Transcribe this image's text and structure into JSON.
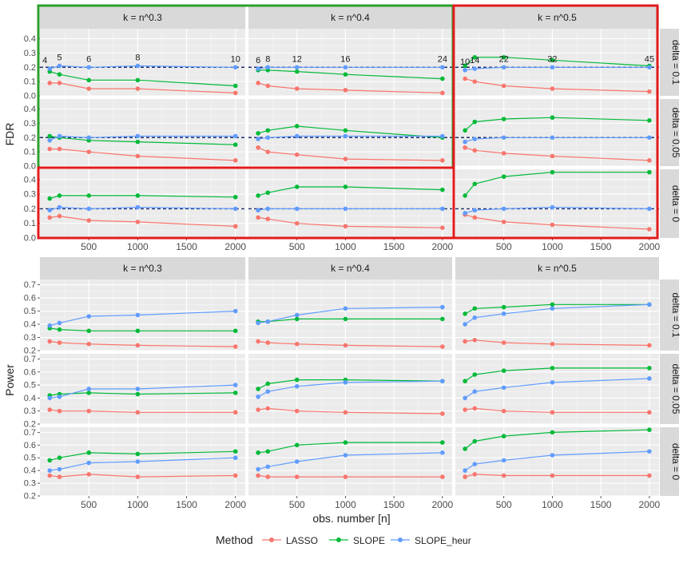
{
  "colors": {
    "LASSO": "#F8766D",
    "SLOPE": "#00BA38",
    "SLOPE_heur": "#619CFF",
    "panel_bg": "#EBEBEB",
    "strip_bg": "#D9D9D9",
    "highlight_green": "#2CA02C",
    "highlight_red": "#E31A1C",
    "reference_line": "#1F2F6B"
  },
  "legend": {
    "title": "Method",
    "entries": [
      "LASSO",
      "SLOPE",
      "SLOPE_heur"
    ]
  },
  "x_axis_label": "obs. number [n]",
  "col_strips": [
    "k = n^0.3",
    "k = n^0.4",
    "k = n^0.5"
  ],
  "row_strips": [
    "delta = 0.1",
    "delta = 0.05",
    "delta = 0"
  ],
  "chart_data": [
    {
      "type": "line",
      "ylabel": "FDR",
      "x": [
        100,
        200,
        500,
        1000,
        2000
      ],
      "x_ticks": [
        "500",
        "1000",
        "1500",
        "2000"
      ],
      "xlim": [
        0,
        2100
      ],
      "ylim": [
        0,
        0.47
      ],
      "y_ticks": [
        "0.0",
        "0.1",
        "0.2",
        "0.3",
        "0.4"
      ],
      "reference_line_y": 0.2,
      "panels": [
        {
          "col": 0,
          "row": 0,
          "LASSO": [
            0.09,
            0.09,
            0.05,
            0.05,
            0.02
          ],
          "SLOPE": [
            0.17,
            0.15,
            0.11,
            0.11,
            0.07
          ],
          "SLOPE_heur": [
            0.19,
            0.21,
            0.2,
            0.21,
            0.2
          ],
          "point_labels": [
            "4",
            "5",
            "6",
            "8",
            "10"
          ]
        },
        {
          "col": 1,
          "row": 0,
          "LASSO": [
            0.09,
            0.07,
            0.05,
            0.04,
            0.02
          ],
          "SLOPE": [
            0.18,
            0.18,
            0.17,
            0.15,
            0.12
          ],
          "SLOPE_heur": [
            0.19,
            0.2,
            0.2,
            0.2,
            0.2
          ],
          "point_labels": [
            "6",
            "8",
            "12",
            "16",
            "24"
          ]
        },
        {
          "col": 2,
          "row": 0,
          "LASSO": [
            0.12,
            0.1,
            0.07,
            0.05,
            0.03
          ],
          "SLOPE": [
            0.21,
            0.27,
            0.27,
            0.25,
            0.21
          ],
          "SLOPE_heur": [
            0.18,
            0.19,
            0.2,
            0.2,
            0.2
          ],
          "point_labels": [
            "10",
            "14",
            "22",
            "32",
            "45"
          ]
        },
        {
          "col": 0,
          "row": 1,
          "LASSO": [
            0.12,
            0.12,
            0.1,
            0.07,
            0.04
          ],
          "SLOPE": [
            0.21,
            0.2,
            0.18,
            0.17,
            0.15
          ],
          "SLOPE_heur": [
            0.18,
            0.21,
            0.2,
            0.21,
            0.21
          ]
        },
        {
          "col": 1,
          "row": 1,
          "LASSO": [
            0.13,
            0.1,
            0.08,
            0.05,
            0.04
          ],
          "SLOPE": [
            0.23,
            0.25,
            0.28,
            0.25,
            0.2
          ],
          "SLOPE_heur": [
            0.19,
            0.2,
            0.21,
            0.21,
            0.21
          ]
        },
        {
          "col": 2,
          "row": 1,
          "LASSO": [
            0.13,
            0.11,
            0.09,
            0.07,
            0.04
          ],
          "SLOPE": [
            0.25,
            0.31,
            0.33,
            0.34,
            0.32
          ],
          "SLOPE_heur": [
            0.17,
            0.19,
            0.2,
            0.2,
            0.2
          ]
        },
        {
          "col": 0,
          "row": 2,
          "LASSO": [
            0.14,
            0.15,
            0.12,
            0.11,
            0.08
          ],
          "SLOPE": [
            0.27,
            0.29,
            0.29,
            0.29,
            0.28
          ],
          "SLOPE_heur": [
            0.19,
            0.21,
            0.2,
            0.21,
            0.2
          ]
        },
        {
          "col": 1,
          "row": 2,
          "LASSO": [
            0.14,
            0.13,
            0.1,
            0.08,
            0.07
          ],
          "SLOPE": [
            0.29,
            0.31,
            0.35,
            0.35,
            0.33
          ],
          "SLOPE_heur": [
            0.19,
            0.2,
            0.2,
            0.2,
            0.2
          ]
        },
        {
          "col": 2,
          "row": 2,
          "LASSO": [
            0.16,
            0.14,
            0.11,
            0.09,
            0.06
          ],
          "SLOPE": [
            0.29,
            0.37,
            0.42,
            0.45,
            0.45
          ],
          "SLOPE_heur": [
            0.17,
            0.19,
            0.2,
            0.21,
            0.2
          ]
        }
      ]
    },
    {
      "type": "line",
      "ylabel": "Power",
      "x": [
        100,
        200,
        500,
        1000,
        2000
      ],
      "x_ticks": [
        "500",
        "1000",
        "1500",
        "2000"
      ],
      "xlim": [
        0,
        2100
      ],
      "ylim": [
        0.2,
        0.74
      ],
      "y_ticks": [
        "0.2",
        "0.3",
        "0.4",
        "0.5",
        "0.6",
        "0.7"
      ],
      "panels": [
        {
          "col": 0,
          "row": 0,
          "LASSO": [
            0.27,
            0.26,
            0.25,
            0.24,
            0.23
          ],
          "SLOPE": [
            0.37,
            0.36,
            0.35,
            0.35,
            0.35
          ],
          "SLOPE_heur": [
            0.39,
            0.41,
            0.46,
            0.47,
            0.5
          ]
        },
        {
          "col": 1,
          "row": 0,
          "LASSO": [
            0.27,
            0.26,
            0.25,
            0.24,
            0.23
          ],
          "SLOPE": [
            0.42,
            0.42,
            0.44,
            0.44,
            0.44
          ],
          "SLOPE_heur": [
            0.41,
            0.42,
            0.47,
            0.52,
            0.53
          ]
        },
        {
          "col": 2,
          "row": 0,
          "LASSO": [
            0.27,
            0.28,
            0.26,
            0.25,
            0.24
          ],
          "SLOPE": [
            0.48,
            0.52,
            0.53,
            0.55,
            0.55
          ],
          "SLOPE_heur": [
            0.4,
            0.45,
            0.48,
            0.52,
            0.55
          ]
        },
        {
          "col": 0,
          "row": 1,
          "LASSO": [
            0.31,
            0.3,
            0.3,
            0.29,
            0.29
          ],
          "SLOPE": [
            0.42,
            0.43,
            0.44,
            0.43,
            0.44
          ],
          "SLOPE_heur": [
            0.4,
            0.41,
            0.47,
            0.47,
            0.5
          ]
        },
        {
          "col": 1,
          "row": 1,
          "LASSO": [
            0.31,
            0.32,
            0.3,
            0.29,
            0.28
          ],
          "SLOPE": [
            0.47,
            0.51,
            0.54,
            0.54,
            0.53
          ],
          "SLOPE_heur": [
            0.41,
            0.45,
            0.49,
            0.52,
            0.53
          ]
        },
        {
          "col": 2,
          "row": 1,
          "LASSO": [
            0.31,
            0.32,
            0.3,
            0.29,
            0.29
          ],
          "SLOPE": [
            0.53,
            0.58,
            0.61,
            0.63,
            0.63
          ],
          "SLOPE_heur": [
            0.4,
            0.45,
            0.48,
            0.52,
            0.55
          ]
        },
        {
          "col": 0,
          "row": 2,
          "LASSO": [
            0.36,
            0.35,
            0.37,
            0.35,
            0.36
          ],
          "SLOPE": [
            0.48,
            0.5,
            0.54,
            0.53,
            0.55
          ],
          "SLOPE_heur": [
            0.4,
            0.41,
            0.46,
            0.47,
            0.5
          ]
        },
        {
          "col": 1,
          "row": 2,
          "LASSO": [
            0.36,
            0.35,
            0.35,
            0.35,
            0.35
          ],
          "SLOPE": [
            0.54,
            0.55,
            0.6,
            0.62,
            0.62
          ],
          "SLOPE_heur": [
            0.41,
            0.43,
            0.47,
            0.52,
            0.54
          ]
        },
        {
          "col": 2,
          "row": 2,
          "LASSO": [
            0.35,
            0.37,
            0.36,
            0.36,
            0.36
          ],
          "SLOPE": [
            0.57,
            0.63,
            0.67,
            0.7,
            0.72
          ],
          "SLOPE_heur": [
            0.4,
            0.45,
            0.48,
            0.52,
            0.55
          ]
        }
      ]
    }
  ]
}
